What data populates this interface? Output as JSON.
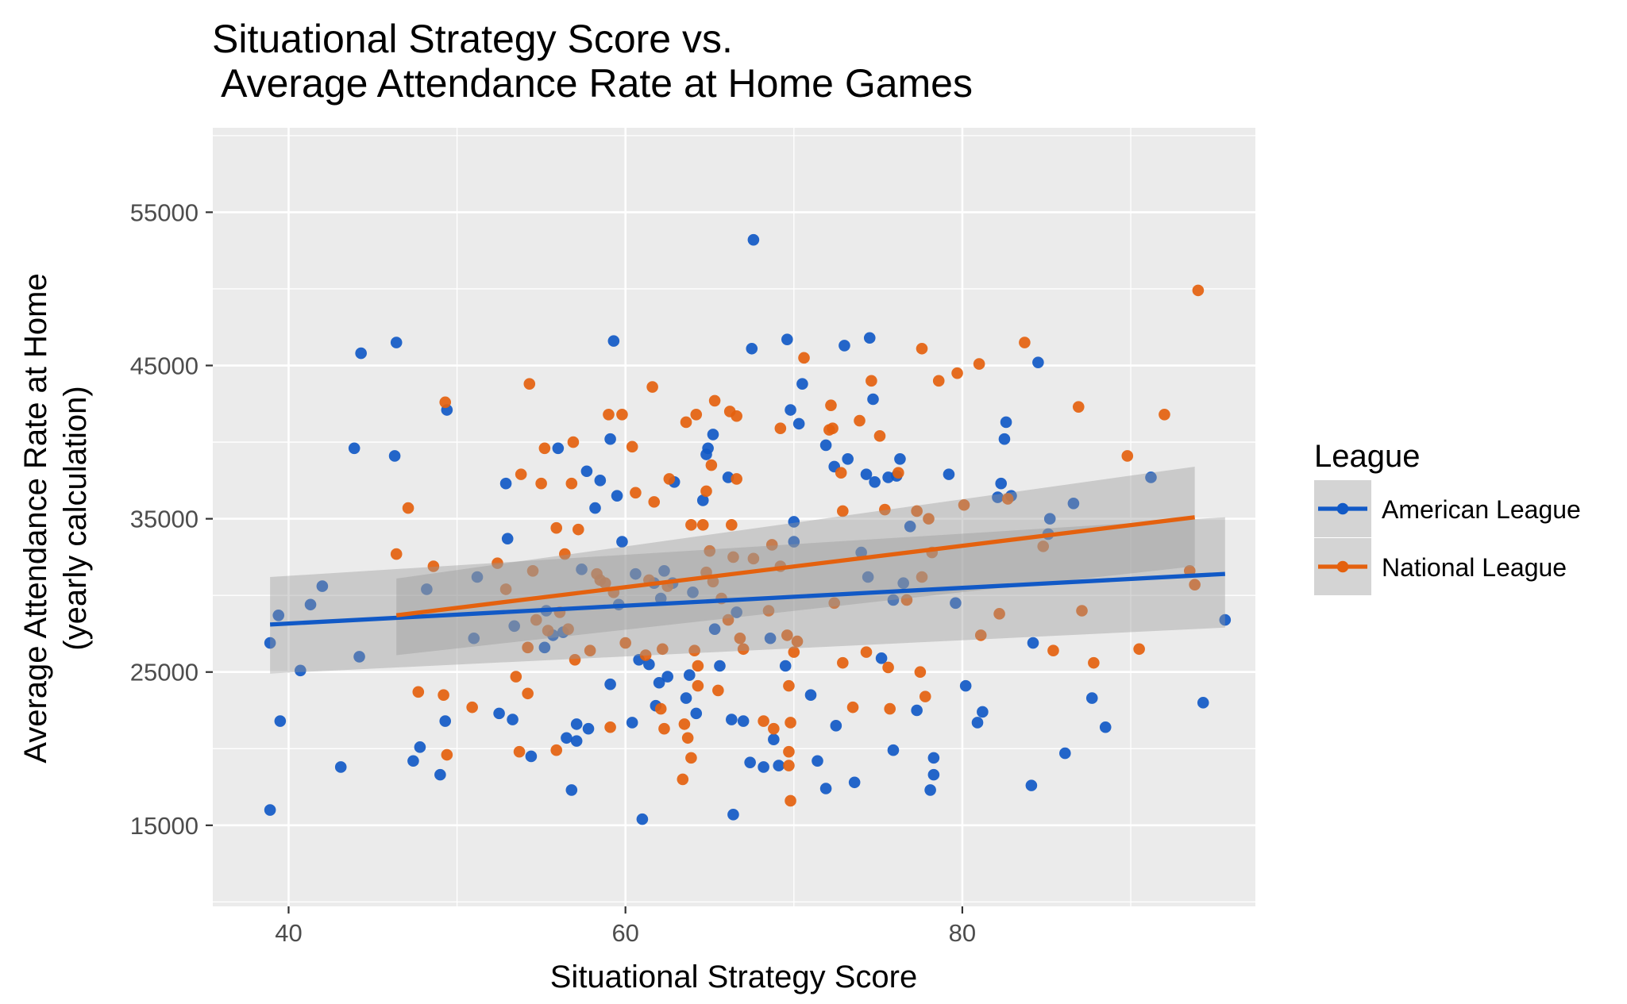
{
  "chart_data": {
    "type": "scatter",
    "title_line1": "Situational Strategy Score vs.",
    "title_line2": " Average Attendance Rate at Home Games",
    "xlabel": "Situational Strategy Score",
    "ylabel_line1": "Average Attendance Rate at Home",
    "ylabel_line2": "(yearly calculation)",
    "xlim": [
      35.5,
      97.4
    ],
    "ylim": [
      9710,
      60510
    ],
    "x_ticks": [
      40,
      60,
      80
    ],
    "y_ticks": [
      15000,
      25000,
      35000,
      45000,
      55000
    ],
    "x_minor_ticks": [
      50,
      70,
      90
    ],
    "y_minor_ticks": [
      10000,
      20000,
      30000,
      40000,
      50000,
      60000
    ],
    "grid": true,
    "panel_background": "#ebebeb",
    "grid_color": "#ffffff",
    "legend": {
      "title": "League",
      "position": "right",
      "items": [
        {
          "label": "American League",
          "color": "#1159c6"
        },
        {
          "label": "National League",
          "color": "#e4610e"
        }
      ]
    },
    "series": [
      {
        "name": "American League",
        "color": "#1159c6",
        "trend": {
          "x": [
            38.9,
            95.6
          ],
          "y": [
            28100,
            31400
          ],
          "ci_low": [
            24900,
            27900
          ],
          "ci_high": [
            31200,
            35100
          ]
        },
        "points": [
          [
            38.9,
            16000
          ],
          [
            38.9,
            26900
          ],
          [
            39.4,
            28700
          ],
          [
            39.5,
            21800
          ],
          [
            40.7,
            25100
          ],
          [
            41.3,
            29400
          ],
          [
            42.0,
            30600
          ],
          [
            43.1,
            18800
          ],
          [
            43.9,
            39600
          ],
          [
            44.2,
            26000
          ],
          [
            44.3,
            45800
          ],
          [
            46.3,
            39100
          ],
          [
            46.4,
            46500
          ],
          [
            47.4,
            19200
          ],
          [
            47.8,
            20100
          ],
          [
            48.2,
            30400
          ],
          [
            49.0,
            18300
          ],
          [
            49.3,
            21800
          ],
          [
            49.4,
            42100
          ],
          [
            51.0,
            27200
          ],
          [
            51.2,
            31200
          ],
          [
            52.5,
            22300
          ],
          [
            52.9,
            37300
          ],
          [
            53.0,
            33700
          ],
          [
            53.3,
            21900
          ],
          [
            53.4,
            28000
          ],
          [
            54.4,
            19500
          ],
          [
            55.2,
            26600
          ],
          [
            55.3,
            29000
          ],
          [
            55.7,
            27400
          ],
          [
            56.0,
            39600
          ],
          [
            56.3,
            27600
          ],
          [
            56.5,
            20700
          ],
          [
            56.8,
            17300
          ],
          [
            57.1,
            21600
          ],
          [
            57.1,
            20500
          ],
          [
            57.4,
            31700
          ],
          [
            57.7,
            38100
          ],
          [
            57.8,
            21300
          ],
          [
            58.2,
            35700
          ],
          [
            58.5,
            37500
          ],
          [
            59.1,
            40200
          ],
          [
            59.1,
            24200
          ],
          [
            59.3,
            46600
          ],
          [
            59.5,
            36500
          ],
          [
            59.6,
            29400
          ],
          [
            59.8,
            33500
          ],
          [
            60.4,
            21700
          ],
          [
            60.6,
            31400
          ],
          [
            60.8,
            25800
          ],
          [
            61.0,
            15400
          ],
          [
            61.4,
            25500
          ],
          [
            61.7,
            30800
          ],
          [
            61.8,
            22800
          ],
          [
            62.0,
            24300
          ],
          [
            62.1,
            29800
          ],
          [
            62.3,
            31600
          ],
          [
            62.5,
            24700
          ],
          [
            62.8,
            30800
          ],
          [
            62.9,
            37400
          ],
          [
            63.6,
            23300
          ],
          [
            63.8,
            24800
          ],
          [
            64.0,
            30200
          ],
          [
            64.2,
            22300
          ],
          [
            64.6,
            36200
          ],
          [
            64.8,
            39200
          ],
          [
            64.9,
            39600
          ],
          [
            65.2,
            40500
          ],
          [
            65.3,
            27800
          ],
          [
            65.6,
            25400
          ],
          [
            66.1,
            37700
          ],
          [
            66.3,
            21900
          ],
          [
            66.4,
            15700
          ],
          [
            66.6,
            28900
          ],
          [
            67.0,
            21800
          ],
          [
            67.4,
            19100
          ],
          [
            67.5,
            46100
          ],
          [
            67.6,
            53200
          ],
          [
            68.2,
            18800
          ],
          [
            68.6,
            27200
          ],
          [
            68.8,
            20600
          ],
          [
            69.1,
            18900
          ],
          [
            69.5,
            25400
          ],
          [
            69.6,
            46700
          ],
          [
            69.8,
            42100
          ],
          [
            70.0,
            33500
          ],
          [
            70.0,
            34800
          ],
          [
            70.3,
            41200
          ],
          [
            70.5,
            43800
          ],
          [
            71.0,
            23500
          ],
          [
            71.4,
            19200
          ],
          [
            71.9,
            39800
          ],
          [
            71.9,
            17400
          ],
          [
            72.4,
            38400
          ],
          [
            72.5,
            21500
          ],
          [
            73.0,
            46300
          ],
          [
            73.2,
            38900
          ],
          [
            73.6,
            17800
          ],
          [
            74.0,
            32800
          ],
          [
            74.3,
            37900
          ],
          [
            74.4,
            31200
          ],
          [
            74.5,
            46800
          ],
          [
            74.7,
            42800
          ],
          [
            74.8,
            37400
          ],
          [
            75.2,
            25900
          ],
          [
            75.6,
            37700
          ],
          [
            75.9,
            29700
          ],
          [
            75.9,
            19900
          ],
          [
            76.1,
            37800
          ],
          [
            76.3,
            38900
          ],
          [
            76.5,
            30800
          ],
          [
            76.9,
            34500
          ],
          [
            77.3,
            22500
          ],
          [
            78.1,
            17300
          ],
          [
            78.3,
            18300
          ],
          [
            78.3,
            19400
          ],
          [
            79.2,
            37900
          ],
          [
            79.6,
            29500
          ],
          [
            80.2,
            24100
          ],
          [
            80.9,
            21700
          ],
          [
            81.2,
            22400
          ],
          [
            82.1,
            36400
          ],
          [
            82.3,
            37300
          ],
          [
            82.5,
            40200
          ],
          [
            82.6,
            41300
          ],
          [
            82.9,
            36500
          ],
          [
            84.1,
            17600
          ],
          [
            84.2,
            26900
          ],
          [
            84.5,
            45200
          ],
          [
            85.1,
            34000
          ],
          [
            85.2,
            35000
          ],
          [
            86.1,
            19700
          ],
          [
            86.6,
            36000
          ],
          [
            87.7,
            23300
          ],
          [
            88.5,
            21400
          ],
          [
            91.2,
            37700
          ],
          [
            94.3,
            23000
          ],
          [
            95.6,
            28400
          ]
        ]
      },
      {
        "name": "National League",
        "color": "#e4610e",
        "trend": {
          "x": [
            46.4,
            93.8
          ],
          "y": [
            28700,
            35100
          ],
          "ci_low": [
            26100,
            31900
          ],
          "ci_high": [
            31100,
            38400
          ]
        },
        "points": [
          [
            46.4,
            32700
          ],
          [
            47.1,
            35700
          ],
          [
            47.7,
            23700
          ],
          [
            48.6,
            31900
          ],
          [
            49.2,
            23500
          ],
          [
            49.3,
            42600
          ],
          [
            49.4,
            19600
          ],
          [
            50.9,
            22700
          ],
          [
            52.4,
            32100
          ],
          [
            52.9,
            30400
          ],
          [
            53.5,
            24700
          ],
          [
            53.7,
            19800
          ],
          [
            53.8,
            37900
          ],
          [
            54.2,
            23600
          ],
          [
            54.2,
            26600
          ],
          [
            54.3,
            43800
          ],
          [
            54.5,
            31600
          ],
          [
            54.7,
            28400
          ],
          [
            55.0,
            37300
          ],
          [
            55.2,
            39600
          ],
          [
            55.4,
            27700
          ],
          [
            55.9,
            34400
          ],
          [
            55.9,
            19900
          ],
          [
            56.1,
            28900
          ],
          [
            56.4,
            32700
          ],
          [
            56.6,
            27800
          ],
          [
            56.8,
            37300
          ],
          [
            56.9,
            40000
          ],
          [
            57.0,
            25800
          ],
          [
            57.2,
            34300
          ],
          [
            57.9,
            26400
          ],
          [
            58.3,
            31400
          ],
          [
            58.5,
            31000
          ],
          [
            58.8,
            30800
          ],
          [
            59.0,
            41800
          ],
          [
            59.1,
            21400
          ],
          [
            59.3,
            30200
          ],
          [
            59.8,
            41800
          ],
          [
            60.0,
            26900
          ],
          [
            60.4,
            39700
          ],
          [
            60.6,
            36700
          ],
          [
            61.2,
            26100
          ],
          [
            61.4,
            31000
          ],
          [
            61.6,
            43600
          ],
          [
            61.7,
            36100
          ],
          [
            62.1,
            22600
          ],
          [
            62.2,
            26500
          ],
          [
            62.3,
            21300
          ],
          [
            62.5,
            30600
          ],
          [
            62.6,
            37600
          ],
          [
            63.4,
            18000
          ],
          [
            63.5,
            21600
          ],
          [
            63.6,
            41300
          ],
          [
            63.7,
            20700
          ],
          [
            63.9,
            34600
          ],
          [
            63.9,
            19400
          ],
          [
            64.1,
            26400
          ],
          [
            64.2,
            41800
          ],
          [
            64.3,
            25400
          ],
          [
            64.3,
            24100
          ],
          [
            64.6,
            34600
          ],
          [
            64.8,
            31500
          ],
          [
            64.8,
            36800
          ],
          [
            65.0,
            32900
          ],
          [
            65.1,
            38500
          ],
          [
            65.2,
            30900
          ],
          [
            65.3,
            42700
          ],
          [
            65.5,
            23800
          ],
          [
            65.7,
            29800
          ],
          [
            66.1,
            28400
          ],
          [
            66.2,
            42000
          ],
          [
            66.3,
            34600
          ],
          [
            66.4,
            32500
          ],
          [
            66.6,
            37600
          ],
          [
            66.6,
            41700
          ],
          [
            66.8,
            27200
          ],
          [
            67.0,
            26500
          ],
          [
            67.6,
            32400
          ],
          [
            68.2,
            21800
          ],
          [
            68.5,
            29000
          ],
          [
            68.7,
            33300
          ],
          [
            68.8,
            21300
          ],
          [
            69.2,
            40900
          ],
          [
            69.2,
            31900
          ],
          [
            69.6,
            27400
          ],
          [
            69.7,
            19800
          ],
          [
            69.7,
            18900
          ],
          [
            69.7,
            24100
          ],
          [
            69.8,
            16600
          ],
          [
            69.8,
            21700
          ],
          [
            70.0,
            26300
          ],
          [
            70.2,
            27000
          ],
          [
            70.6,
            45500
          ],
          [
            72.1,
            40800
          ],
          [
            72.2,
            42400
          ],
          [
            72.3,
            40900
          ],
          [
            72.4,
            29500
          ],
          [
            72.8,
            38000
          ],
          [
            72.9,
            35500
          ],
          [
            72.9,
            25600
          ],
          [
            73.5,
            22700
          ],
          [
            73.9,
            41400
          ],
          [
            74.3,
            26300
          ],
          [
            74.6,
            44000
          ],
          [
            75.1,
            40400
          ],
          [
            75.4,
            35600
          ],
          [
            75.6,
            25300
          ],
          [
            75.7,
            22600
          ],
          [
            76.2,
            38000
          ],
          [
            76.7,
            29700
          ],
          [
            77.3,
            35500
          ],
          [
            77.5,
            25000
          ],
          [
            77.6,
            46100
          ],
          [
            77.6,
            31200
          ],
          [
            77.8,
            23400
          ],
          [
            78.0,
            35000
          ],
          [
            78.2,
            32800
          ],
          [
            78.6,
            44000
          ],
          [
            79.7,
            44500
          ],
          [
            80.1,
            35900
          ],
          [
            81.0,
            45100
          ],
          [
            81.1,
            27400
          ],
          [
            82.2,
            28800
          ],
          [
            82.7,
            36300
          ],
          [
            83.7,
            46500
          ],
          [
            84.8,
            33200
          ],
          [
            85.4,
            26400
          ],
          [
            86.9,
            42300
          ],
          [
            87.1,
            29000
          ],
          [
            87.8,
            25600
          ],
          [
            89.8,
            39100
          ],
          [
            90.5,
            26500
          ],
          [
            92.0,
            41800
          ],
          [
            93.5,
            31600
          ],
          [
            93.8,
            30700
          ],
          [
            94.0,
            49900
          ]
        ]
      }
    ]
  }
}
